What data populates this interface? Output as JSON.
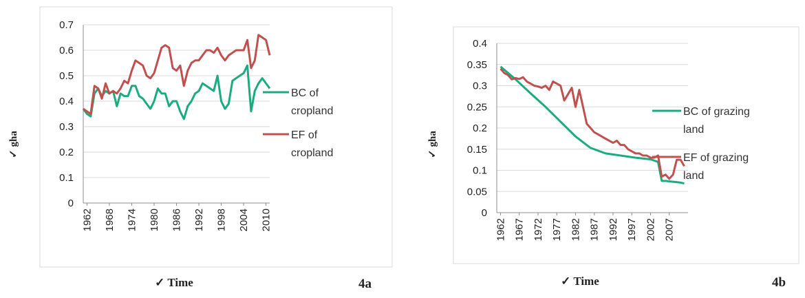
{
  "colors": {
    "bc": "#1aab80",
    "ef": "#c0504d"
  },
  "y_label": "✓ gha",
  "x_label": "✓ Time",
  "chart_data": [
    {
      "type": "line",
      "panel_label": "4a",
      "ylabel": "✓ gha",
      "xlabel": "✓ Time",
      "ylim": [
        0,
        0.7
      ],
      "yticks": [
        "0",
        "0.1",
        "0.2",
        "0.3",
        "0.4",
        "0.5",
        "0.6",
        "0.7"
      ],
      "xticks": [
        "1962",
        "1968",
        "1974",
        "1980",
        "1986",
        "1992",
        "1998",
        "2004",
        "2010"
      ],
      "xlim": [
        1961,
        2011
      ],
      "grid": true,
      "legend": "right",
      "series": [
        {
          "name": "BC of cropland",
          "legend_lines": [
            "BC of",
            "cropland"
          ],
          "color": "#1aab80",
          "x": [
            1961,
            1962,
            1963,
            1964,
            1965,
            1966,
            1967,
            1968,
            1969,
            1970,
            1971,
            1972,
            1973,
            1974,
            1975,
            1976,
            1977,
            1978,
            1979,
            1980,
            1981,
            1982,
            1983,
            1984,
            1985,
            1986,
            1987,
            1988,
            1989,
            1990,
            1991,
            1992,
            1993,
            1994,
            1995,
            1996,
            1997,
            1998,
            1999,
            2000,
            2001,
            2002,
            2003,
            2004,
            2005,
            2006,
            2007,
            2008,
            2009,
            2010,
            2011
          ],
          "y": [
            0.37,
            0.35,
            0.34,
            0.43,
            0.45,
            0.42,
            0.44,
            0.43,
            0.44,
            0.38,
            0.43,
            0.42,
            0.42,
            0.46,
            0.46,
            0.42,
            0.41,
            0.39,
            0.37,
            0.4,
            0.45,
            0.43,
            0.43,
            0.38,
            0.4,
            0.4,
            0.36,
            0.33,
            0.38,
            0.4,
            0.43,
            0.44,
            0.47,
            0.46,
            0.45,
            0.44,
            0.5,
            0.4,
            0.37,
            0.39,
            0.48,
            0.49,
            0.5,
            0.51,
            0.54,
            0.36,
            0.44,
            0.47,
            0.49,
            0.47,
            0.45
          ]
        },
        {
          "name": "EF of cropland",
          "legend_lines": [
            "EF of",
            "cropland"
          ],
          "color": "#c0504d",
          "x": [
            1961,
            1962,
            1963,
            1964,
            1965,
            1966,
            1967,
            1968,
            1969,
            1970,
            1971,
            1972,
            1973,
            1974,
            1975,
            1976,
            1977,
            1978,
            1979,
            1980,
            1981,
            1982,
            1983,
            1984,
            1985,
            1986,
            1987,
            1988,
            1989,
            1990,
            1991,
            1992,
            1993,
            1994,
            1995,
            1996,
            1997,
            1998,
            1999,
            2000,
            2001,
            2002,
            2003,
            2004,
            2005,
            2006,
            2007,
            2008,
            2009,
            2010,
            2011
          ],
          "y": [
            0.37,
            0.36,
            0.35,
            0.46,
            0.45,
            0.41,
            0.47,
            0.43,
            0.44,
            0.43,
            0.45,
            0.48,
            0.47,
            0.52,
            0.56,
            0.55,
            0.54,
            0.5,
            0.49,
            0.51,
            0.56,
            0.61,
            0.62,
            0.61,
            0.53,
            0.52,
            0.54,
            0.46,
            0.52,
            0.55,
            0.56,
            0.56,
            0.58,
            0.6,
            0.6,
            0.59,
            0.61,
            0.58,
            0.56,
            0.58,
            0.59,
            0.6,
            0.6,
            0.6,
            0.64,
            0.53,
            0.56,
            0.66,
            0.65,
            0.64,
            0.58
          ]
        }
      ]
    },
    {
      "type": "line",
      "panel_label": "4b",
      "ylabel": "✓ gha",
      "xlabel": "✓ Time",
      "ylim": [
        0,
        0.4
      ],
      "yticks": [
        "0",
        "0.05",
        "0.1",
        "0.15",
        "0.2",
        "0.25",
        "0.3",
        "0.35",
        "0.4"
      ],
      "xticks": [
        "1962",
        "1967",
        "1972",
        "1977",
        "1982",
        "1987",
        "1992",
        "1997",
        "2002",
        "2007"
      ],
      "xlim": [
        1961,
        2012
      ],
      "grid": true,
      "legend": "right",
      "series": [
        {
          "name": "BC of grazing land",
          "legend_lines": [
            "BC of grazing",
            "land"
          ],
          "color": "#1aab80",
          "x": [
            1962,
            1966,
            1970,
            1974,
            1978,
            1982,
            1986,
            1990,
            1994,
            1998,
            2002,
            2004,
            2005,
            2006,
            2008,
            2010,
            2011
          ],
          "y": [
            0.345,
            0.315,
            0.282,
            0.25,
            0.215,
            0.18,
            0.153,
            0.14,
            0.135,
            0.13,
            0.126,
            0.12,
            0.075,
            0.075,
            0.073,
            0.071,
            0.069
          ]
        },
        {
          "name": "EF of grazing land",
          "legend_lines": [
            "EF of grazing",
            "land"
          ],
          "color": "#c0504d",
          "x": [
            1962,
            1963,
            1964,
            1965,
            1966,
            1967,
            1968,
            1969,
            1970,
            1971,
            1972,
            1973,
            1974,
            1975,
            1976,
            1977,
            1978,
            1979,
            1980,
            1981,
            1982,
            1983,
            1984,
            1985,
            1986,
            1987,
            1988,
            1989,
            1990,
            1991,
            1992,
            1993,
            1994,
            1995,
            1996,
            1997,
            1998,
            1999,
            2000,
            2001,
            2002,
            2003,
            2004,
            2005,
            2006,
            2007,
            2008,
            2009,
            2010,
            2011
          ],
          "y": [
            0.34,
            0.33,
            0.325,
            0.315,
            0.318,
            0.316,
            0.32,
            0.31,
            0.305,
            0.3,
            0.298,
            0.295,
            0.3,
            0.29,
            0.31,
            0.305,
            0.3,
            0.265,
            0.28,
            0.295,
            0.25,
            0.29,
            0.25,
            0.21,
            0.2,
            0.19,
            0.185,
            0.18,
            0.175,
            0.17,
            0.165,
            0.17,
            0.16,
            0.16,
            0.15,
            0.145,
            0.14,
            0.14,
            0.135,
            0.135,
            0.13,
            0.13,
            0.135,
            0.085,
            0.09,
            0.08,
            0.09,
            0.125,
            0.125,
            0.11
          ]
        }
      ]
    }
  ]
}
